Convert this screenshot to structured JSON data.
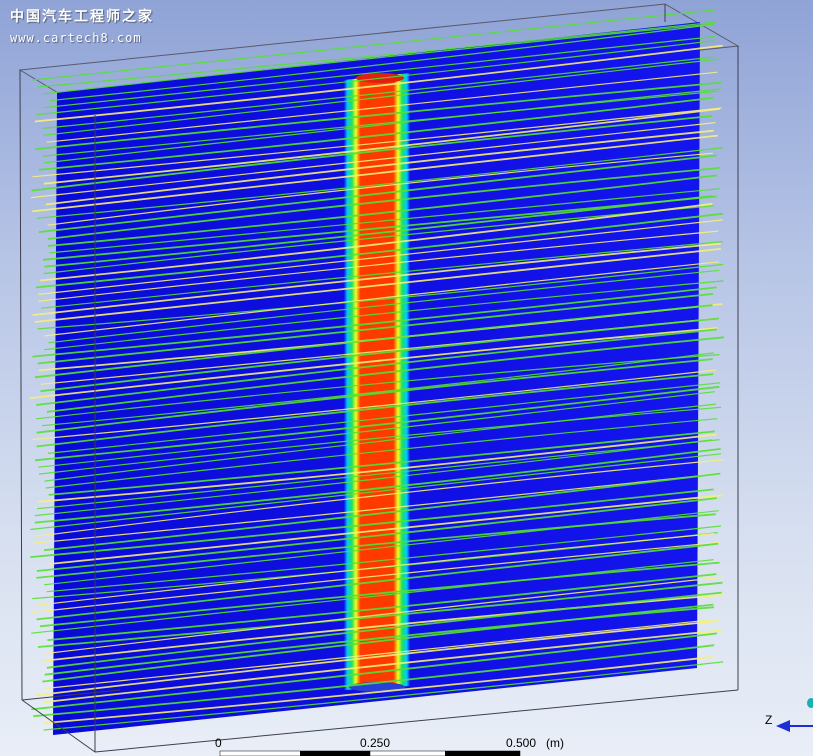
{
  "watermark": {
    "title": "中国汽车工程师之家",
    "url": "www.cartech8.com"
  },
  "scale_bar": {
    "labels": [
      "0",
      "0.250",
      "0.500",
      "(m)"
    ]
  },
  "axis_triad": {
    "label": "Z"
  },
  "colors": {
    "background_top": "#8fa3d6",
    "background_bottom": "#e9eef7",
    "field_low": "#1010e6",
    "field_high": "#ff1a00",
    "streamline_green": "#55e033",
    "streamline_yellow": "#f5f07a",
    "axis_arrow": "#1a2fd6"
  }
}
